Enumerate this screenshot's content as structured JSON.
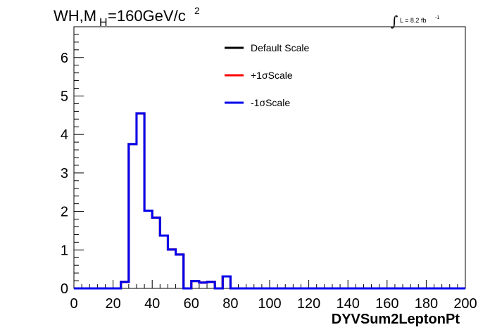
{
  "chart_data": {
    "type": "line",
    "title": {
      "main": "WH,M",
      "sub": "H",
      "rest": "=160GeV/c",
      "sup": "2"
    },
    "lumi": {
      "integral": "∫",
      "text": "L = 8.2 fb",
      "sup": "-1"
    },
    "xlabel": "DYVSum2LeptonPt",
    "ylabel": "",
    "xlim": [
      0,
      200
    ],
    "ylim": [
      0,
      6.8
    ],
    "xticks": [
      0,
      20,
      40,
      60,
      80,
      100,
      120,
      140,
      160,
      180,
      200
    ],
    "yticks": [
      0,
      1,
      2,
      3,
      4,
      5,
      6
    ],
    "bin_edges": [
      0,
      4,
      8,
      12,
      16,
      20,
      24,
      28,
      32,
      36,
      40,
      44,
      48,
      52,
      56,
      60,
      64,
      68,
      72,
      76,
      80,
      84,
      88,
      92,
      96,
      100,
      104,
      108,
      112,
      116,
      120,
      124,
      128,
      132,
      136,
      140,
      144,
      148,
      152,
      156,
      160,
      164,
      168,
      172,
      176,
      180,
      184,
      188,
      192,
      196,
      200
    ],
    "series": [
      {
        "name": "Default Scale",
        "color": "#000000",
        "values": [
          0,
          0,
          0,
          0,
          0,
          0,
          0.17,
          3.75,
          4.55,
          2.02,
          1.84,
          1.37,
          1.01,
          0.88,
          0,
          0.19,
          0.15,
          0.17,
          0,
          0.31,
          0,
          0,
          0,
          0,
          0,
          0,
          0,
          0,
          0,
          0,
          0,
          0,
          0,
          0,
          0,
          0,
          0,
          0,
          0,
          0,
          0,
          0,
          0,
          0,
          0,
          0,
          0,
          0,
          0,
          0
        ]
      },
      {
        "name": "+1σScale",
        "color": "#ff0000",
        "values": [
          0,
          0,
          0,
          0,
          0,
          0,
          0.17,
          3.75,
          4.55,
          2.02,
          1.84,
          1.37,
          1.01,
          0.88,
          0,
          0.19,
          0.15,
          0.17,
          0,
          0.31,
          0,
          0,
          0,
          0,
          0,
          0,
          0,
          0,
          0,
          0,
          0,
          0,
          0,
          0,
          0,
          0,
          0,
          0,
          0,
          0,
          0,
          0,
          0,
          0,
          0,
          0,
          0,
          0,
          0,
          0
        ]
      },
      {
        "name": "-1σScale",
        "color": "#0000ee",
        "values": [
          0,
          0,
          0,
          0,
          0,
          0,
          0.17,
          3.75,
          4.55,
          2.02,
          1.84,
          1.37,
          1.01,
          0.88,
          0,
          0.19,
          0.15,
          0.17,
          0,
          0.31,
          0,
          0,
          0,
          0,
          0,
          0,
          0,
          0,
          0,
          0,
          0,
          0,
          0,
          0,
          0,
          0,
          0,
          0,
          0,
          0,
          0,
          0,
          0,
          0,
          0,
          0,
          0,
          0,
          0,
          0
        ]
      }
    ],
    "legend_position": "top-center",
    "grid": false
  }
}
